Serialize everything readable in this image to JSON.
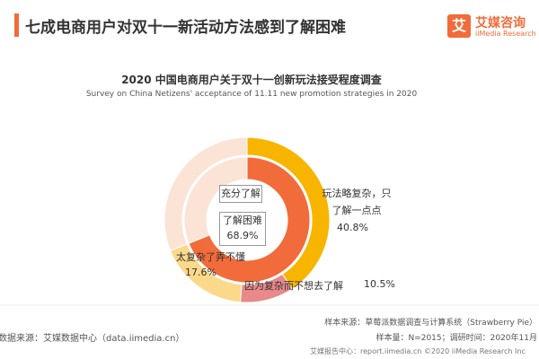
{
  "header": {
    "title": "七成电商用户对双十一新活动方法感到了解困难",
    "logo": "艾媒咨询",
    "logo_sub": "iiMedia Research"
  },
  "chart_data": {
    "type": "donut",
    "title": "2020 中国电商用户关于双十一创新玩法接受程度调查",
    "subtitle": "Survey on China Netizens' acceptance of 11.11 new promotion strategies in 2020",
    "rings": [
      {
        "categories": [
          "了解困难",
          "充分了解"
        ],
        "values": [
          68.9,
          31.1
        ],
        "value_labels": [
          "68.9%",
          null
        ],
        "colors": [
          "#f26b3a",
          "#fbe3d6"
        ]
      },
      {
        "categories": [
          "玩法略复杂，只了解一点点",
          "因为复杂而不想去了解",
          "太复杂了弄不懂",
          null
        ],
        "values": [
          40.8,
          10.5,
          17.6,
          31.1
        ],
        "value_labels": [
          "40.8%",
          "10.5%",
          "17.6%",
          null
        ],
        "colors": [
          "#f7b500",
          "#e8898a",
          "#fbd98a",
          "#fbe3d6"
        ]
      }
    ]
  },
  "footer": {
    "source": "数据来源：艾媒数据中心（data.iimedia.cn）",
    "sample_source": "样本来源：草莓派数据调查与计算系统（Strawberry Pie）",
    "sample_size": "样本量：N=2015；调研时间：2020年11月",
    "report": "艾媒报告中心：report.iimedia.cn ©2020 iiMedia Research Inc"
  }
}
